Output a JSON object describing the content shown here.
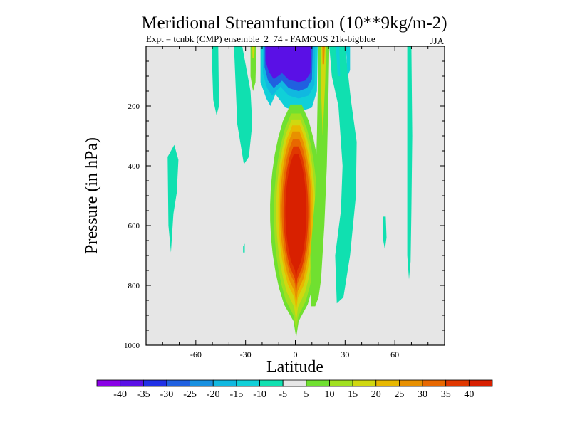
{
  "chart_data": {
    "type": "heatmap",
    "title": "Meridional Streamfunction (10**9kg/m-2)",
    "subtitle_left": "Expt = tcnbk (CMP) ensemble_2_74 - FAMOUS 21k-bigblue",
    "subtitle_right": "JJA",
    "xlabel": "Latitude",
    "ylabel": "Pressure (in hPa)",
    "xlim": [
      -90,
      90
    ],
    "ylim": [
      1000,
      0
    ],
    "x_ticks": [
      -60,
      -30,
      0,
      30,
      60
    ],
    "x_tick_labels": [
      "-60",
      "-30",
      "0",
      "30",
      "60"
    ],
    "y_ticks": [
      200,
      400,
      600,
      800,
      1000
    ],
    "y_tick_labels": [
      "200",
      "400",
      "600",
      "800",
      "1000"
    ],
    "colorbar": {
      "levels": [
        -40,
        -35,
        -30,
        -25,
        -20,
        -15,
        -10,
        -5,
        5,
        10,
        15,
        20,
        25,
        30,
        35,
        40
      ],
      "labels": [
        "-40",
        "-35",
        "-30",
        "-25",
        "-20",
        "-15",
        "-10",
        "-5",
        "5",
        "10",
        "15",
        "20",
        "25",
        "30",
        "35",
        "40"
      ],
      "colors": [
        "#8a00e6",
        "#5a10e6",
        "#2030e6",
        "#2060e0",
        "#1890e0",
        "#10b8e0",
        "#10d0d8",
        "#10e0b0",
        "#e6e6e6",
        "#70e030",
        "#a0e020",
        "#d0d810",
        "#e8b800",
        "#e89000",
        "#e86800",
        "#e03800",
        "#d82000"
      ]
    },
    "field": {
      "background": "#e6e6e6",
      "features": [
        {
          "name": "north-upper-negative-cell",
          "sign": "negative",
          "lat_range": [
            -15,
            12
          ],
          "p_range": [
            0,
            240
          ],
          "peak": -40
        },
        {
          "name": "main-positive-cell",
          "sign": "positive",
          "lat_range": [
            -13,
            14
          ],
          "p_range": [
            200,
            1000
          ],
          "peak": 40
        },
        {
          "name": "southern-negative-band-1",
          "sign": "negative",
          "lat_range": [
            -33,
            -24
          ],
          "p_range": [
            0,
            420
          ],
          "peak": -10
        },
        {
          "name": "southern-negative-band-2",
          "sign": "negative",
          "lat_range": [
            -76,
            -70
          ],
          "p_range": [
            330,
            690
          ],
          "peak": -10
        },
        {
          "name": "northern-negative-bands",
          "sign": "negative",
          "lat_range": [
            20,
            60
          ],
          "p_range": [
            0,
            880
          ],
          "peak": -10
        },
        {
          "name": "northern-positive-band",
          "sign": "positive",
          "lat_range": [
            8,
            20
          ],
          "p_range": [
            0,
            860
          ],
          "peak": 20
        }
      ]
    }
  }
}
